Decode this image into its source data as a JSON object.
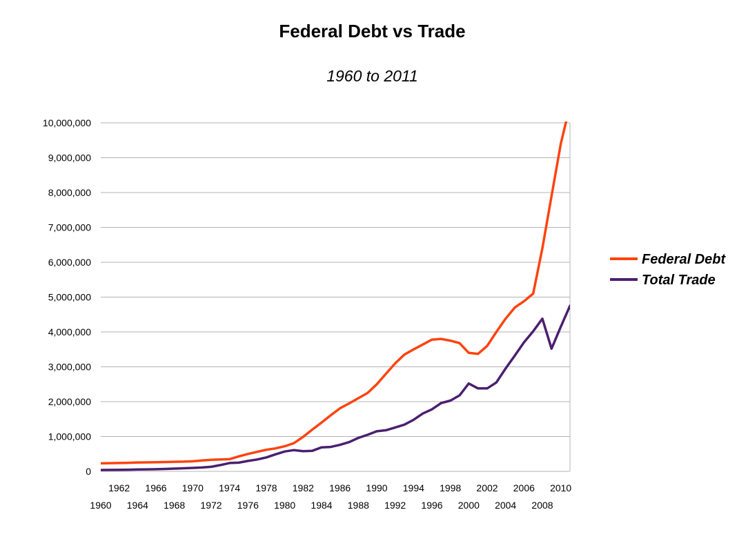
{
  "chart_data": {
    "type": "line",
    "title": "Federal Debt vs Trade",
    "subtitle": "1960 to 2011",
    "xlabel": "",
    "ylabel": "",
    "ylim": [
      0,
      10000000
    ],
    "xlim": [
      1960,
      2011
    ],
    "grid": true,
    "legend_position": "right",
    "y_ticks": [
      "0",
      "1,000,000",
      "2,000,000",
      "3,000,000",
      "4,000,000",
      "5,000,000",
      "6,000,000",
      "7,000,000",
      "8,000,000",
      "9,000,000",
      "10,000,000"
    ],
    "x_ticks_even_upper": [
      "1962",
      "1966",
      "1970",
      "1974",
      "1978",
      "1982",
      "1986",
      "1990",
      "1994",
      "1998",
      "2002",
      "2006",
      "2010"
    ],
    "x_ticks_even_lower": [
      "1960",
      "1964",
      "1968",
      "1972",
      "1976",
      "1980",
      "1984",
      "1988",
      "1992",
      "1996",
      "2000",
      "2004",
      "2008"
    ],
    "x": [
      1960,
      1961,
      1962,
      1963,
      1964,
      1965,
      1966,
      1967,
      1968,
      1969,
      1970,
      1971,
      1972,
      1973,
      1974,
      1975,
      1976,
      1977,
      1978,
      1979,
      1980,
      1981,
      1982,
      1983,
      1984,
      1985,
      1986,
      1987,
      1988,
      1989,
      1990,
      1991,
      1992,
      1993,
      1994,
      1995,
      1996,
      1997,
      1998,
      1999,
      2000,
      2001,
      2002,
      2003,
      2004,
      2005,
      2006,
      2007,
      2008,
      2009,
      2010,
      2011
    ],
    "series": [
      {
        "name": "Federal Debt",
        "color": "#ff420e",
        "values": [
          230000,
          235000,
          240000,
          245000,
          255000,
          258000,
          262000,
          268000,
          275000,
          280000,
          290000,
          310000,
          330000,
          340000,
          350000,
          430000,
          500000,
          560000,
          620000,
          660000,
          720000,
          810000,
          990000,
          1200000,
          1400000,
          1610000,
          1810000,
          1950000,
          2100000,
          2250000,
          2500000,
          2800000,
          3100000,
          3350000,
          3500000,
          3640000,
          3780000,
          3800000,
          3750000,
          3680000,
          3400000,
          3370000,
          3600000,
          4000000,
          4380000,
          4700000,
          4880000,
          5100000,
          6400000,
          7900000,
          9400000,
          10500000
        ]
      },
      {
        "name": "Total Trade",
        "color": "#4b1f6f",
        "values": [
          40000,
          42000,
          44000,
          48000,
          55000,
          58000,
          62000,
          70000,
          80000,
          90000,
          100000,
          110000,
          130000,
          180000,
          240000,
          250000,
          300000,
          340000,
          400000,
          490000,
          570000,
          610000,
          580000,
          590000,
          690000,
          700000,
          760000,
          840000,
          960000,
          1050000,
          1150000,
          1180000,
          1260000,
          1340000,
          1480000,
          1660000,
          1780000,
          1960000,
          2030000,
          2180000,
          2520000,
          2380000,
          2380000,
          2550000,
          2950000,
          3320000,
          3700000,
          4020000,
          4380000,
          3520000,
          4150000,
          4750000
        ]
      }
    ]
  }
}
